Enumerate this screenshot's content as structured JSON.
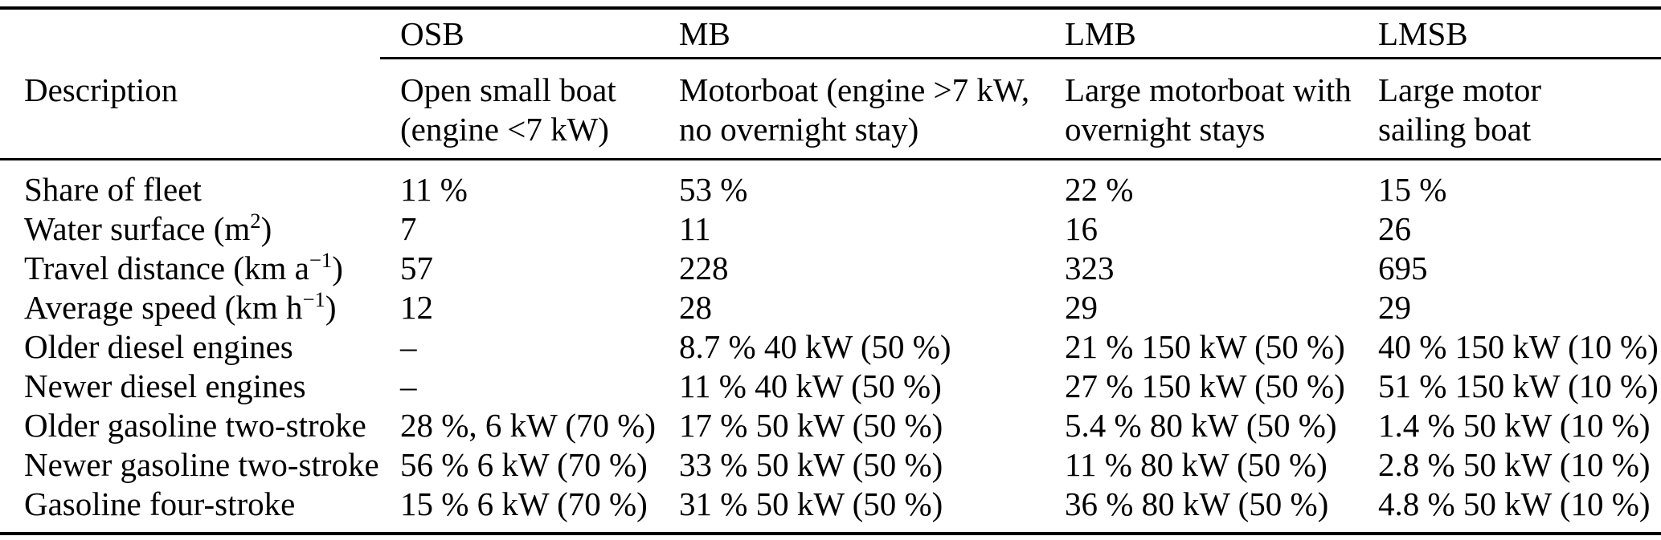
{
  "colors": {
    "background": "#ffffff",
    "text": "#000000",
    "rule": "#000000"
  },
  "table": {
    "description_label": "Description",
    "columns": [
      {
        "abbr": "OSB",
        "description": [
          "Open small boat",
          "(engine <7 kW)"
        ]
      },
      {
        "abbr": "MB",
        "description": [
          "Motorboat (engine >7 kW,",
          "no overnight stay)"
        ]
      },
      {
        "abbr": "LMB",
        "description": [
          "Large motorboat with",
          "overnight stays"
        ]
      },
      {
        "abbr": "LMSB",
        "description": [
          "Large motor",
          "sailing boat"
        ]
      }
    ],
    "rows": [
      {
        "label_pre": "Share of fleet",
        "label_sup": "",
        "label_post": "",
        "values": [
          "11 %",
          "53 %",
          "22 %",
          "15 %"
        ]
      },
      {
        "label_pre": "Water surface (m",
        "label_sup": "2",
        "label_post": ")",
        "values": [
          "7",
          "11",
          "16",
          "26"
        ]
      },
      {
        "label_pre": "Travel distance (km a",
        "label_sup": "−1",
        "label_post": ")",
        "values": [
          "57",
          "228",
          "323",
          "695"
        ]
      },
      {
        "label_pre": "Average speed (km h",
        "label_sup": "−1",
        "label_post": ")",
        "values": [
          "12",
          "28",
          "29",
          "29"
        ]
      },
      {
        "label_pre": "Older diesel engines",
        "label_sup": "",
        "label_post": "",
        "values": [
          "–",
          "8.7 % 40 kW (50 %)",
          "21 % 150 kW (50 %)",
          "40 % 150 kW (10 %)"
        ]
      },
      {
        "label_pre": "Newer diesel engines",
        "label_sup": "",
        "label_post": "",
        "values": [
          "–",
          "11 % 40 kW (50 %)",
          "27 % 150 kW (50 %)",
          "51 % 150 kW (10 %)"
        ]
      },
      {
        "label_pre": "Older gasoline two-stroke",
        "label_sup": "",
        "label_post": "",
        "values": [
          "28 %, 6 kW (70 %)",
          "17 % 50 kW (50 %)",
          "5.4 % 80 kW (50 %)",
          "1.4 % 50 kW (10 %)"
        ]
      },
      {
        "label_pre": "Newer gasoline two-stroke",
        "label_sup": "",
        "label_post": "",
        "values": [
          "56 % 6 kW (70 %)",
          "33 % 50 kW (50 %)",
          "11 % 80 kW (50 %)",
          "2.8 % 50 kW (10 %)"
        ]
      },
      {
        "label_pre": "Gasoline four-stroke",
        "label_sup": "",
        "label_post": "",
        "values": [
          "15 % 6 kW (70 %)",
          "31 % 50 kW (50 %)",
          "36 % 80 kW (50 %)",
          "4.8 % 50 kW (10 %)"
        ]
      }
    ]
  }
}
